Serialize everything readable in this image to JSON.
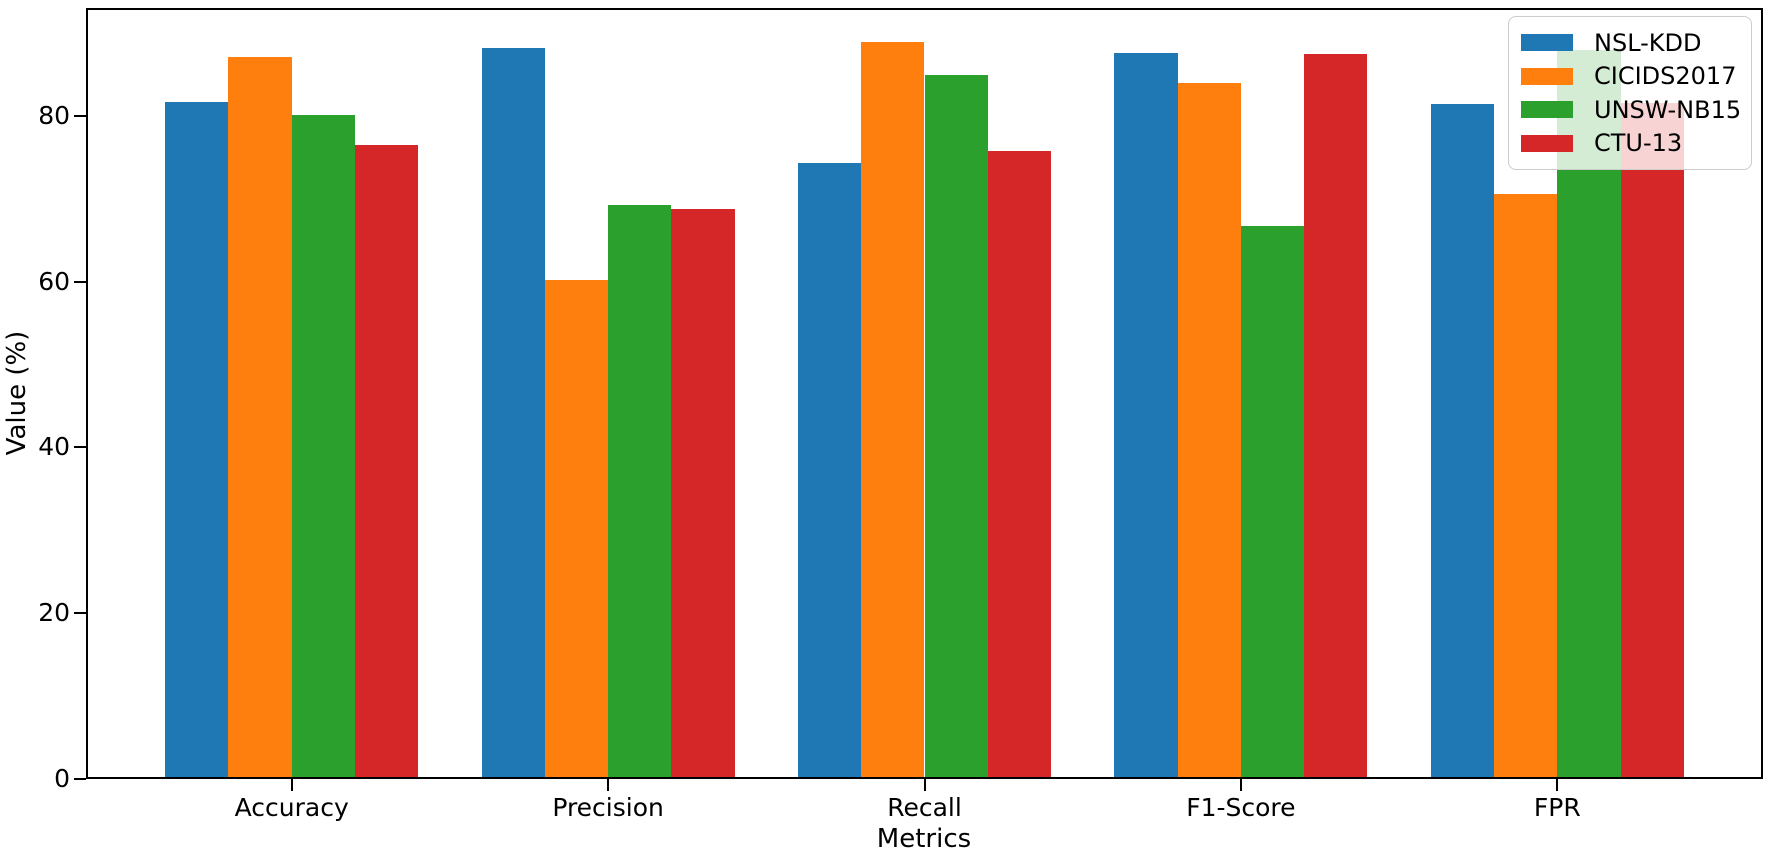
{
  "chart_data": {
    "type": "bar",
    "title": "",
    "xlabel": "Metrics",
    "ylabel": "Value (%)",
    "categories": [
      "Accuracy",
      "Precision",
      "Recall",
      "F1-Score",
      "FPR"
    ],
    "series": [
      {
        "name": "NSL-KDD",
        "color": "#1f77b4",
        "values": [
          81.7,
          88.2,
          74.3,
          87.6,
          81.4
        ]
      },
      {
        "name": "CICIDS2017",
        "color": "#ff7f0e",
        "values": [
          87.1,
          60.2,
          88.9,
          83.9,
          70.6
        ]
      },
      {
        "name": "UNSW-NB15",
        "color": "#2ca02c",
        "values": [
          80.1,
          69.3,
          84.9,
          66.7,
          88.0
        ]
      },
      {
        "name": "CTU-13",
        "color": "#d62728",
        "values": [
          76.5,
          68.8,
          75.8,
          87.5,
          81.6
        ]
      }
    ],
    "ylim": [
      0,
      93
    ],
    "y_ticks": [
      0,
      20,
      40,
      60,
      80
    ],
    "legend_position": "upper right",
    "grid": false,
    "bar_width_data_units": 0.2,
    "group_spacing_data_units": 1.0
  }
}
